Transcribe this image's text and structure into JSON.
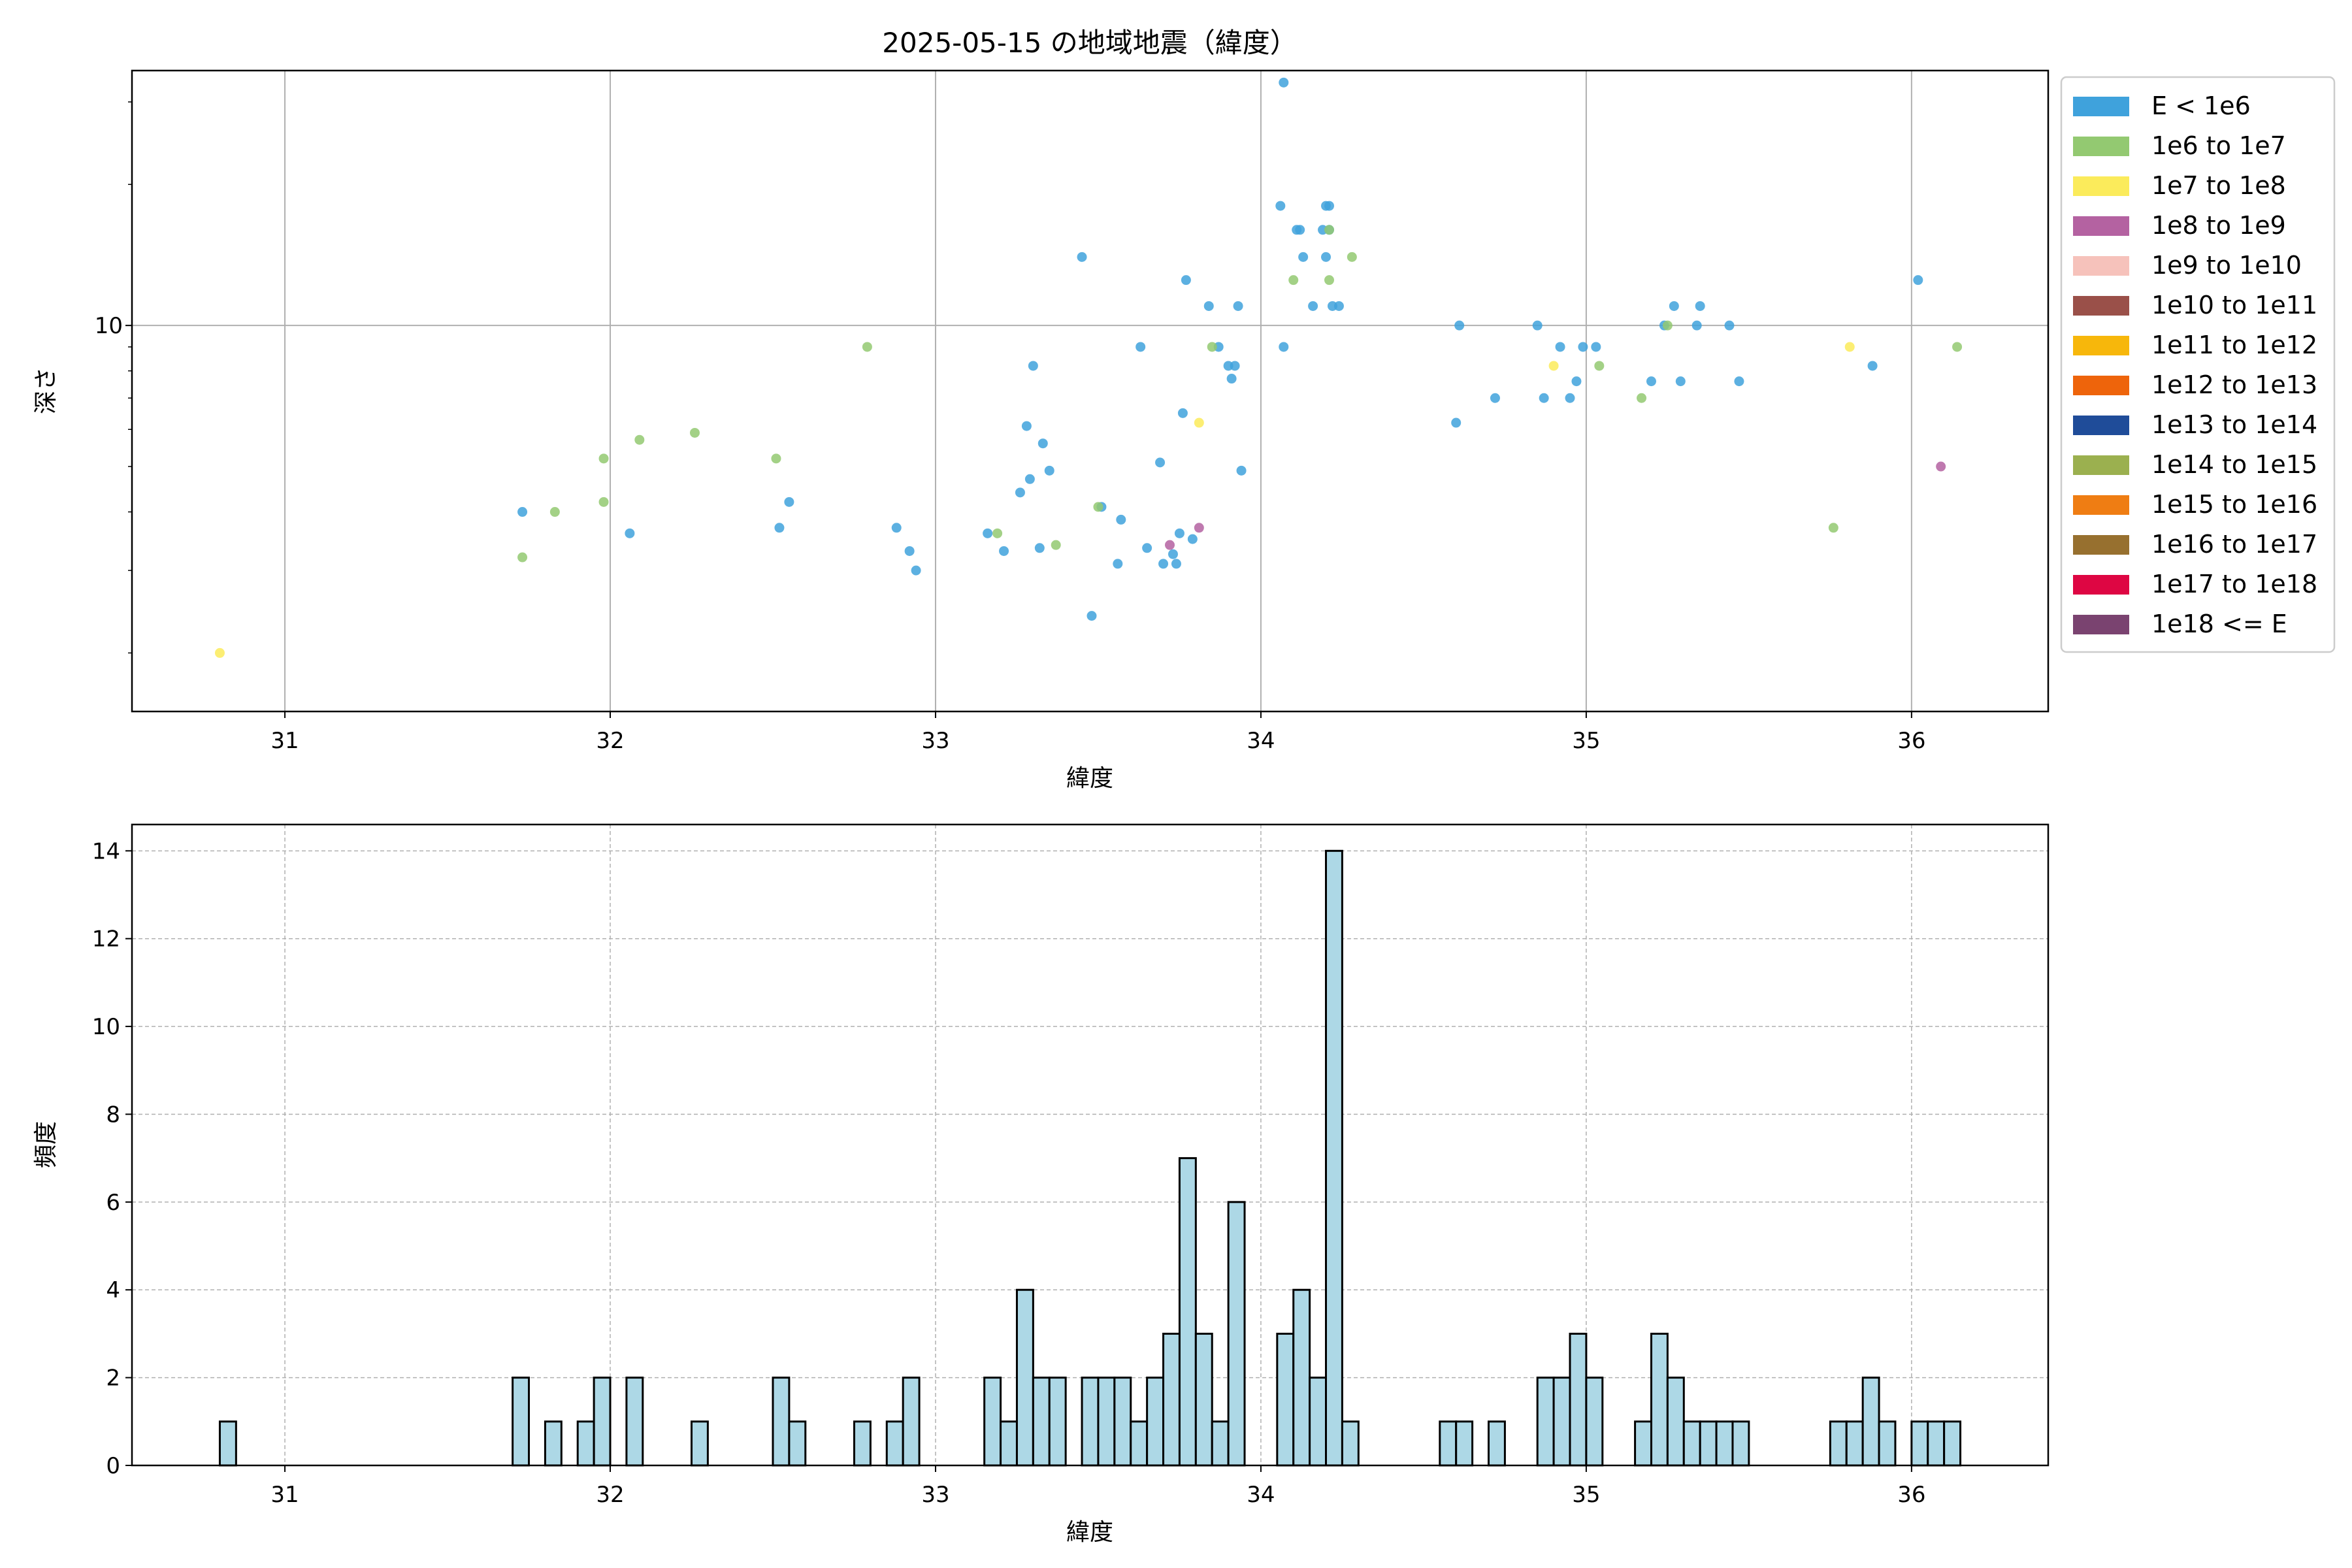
{
  "chart_data": [
    {
      "type": "scatter",
      "title": "2025-05-15 の地域地震（緯度）",
      "xlabel": "緯度",
      "ylabel": "深さ",
      "xlim": [
        30.53,
        36.42
      ],
      "ylim": [
        1.5,
        35
      ],
      "yscale": "log",
      "x_ticks": [
        "31",
        "32",
        "33",
        "34",
        "35",
        "36"
      ],
      "y_tick_label": "10",
      "grid": true,
      "legend_position": "outside-right",
      "legend": [
        {
          "label": "E < 1e6",
          "color": "#3fa2dc"
        },
        {
          "label": "1e6 to 1e7",
          "color": "#93c971"
        },
        {
          "label": "1e7 to 1e8",
          "color": "#fbeb5b"
        },
        {
          "label": "1e8 to 1e9",
          "color": "#b462a1"
        },
        {
          "label": "1e9 to 1e10",
          "color": "#f6c2bb"
        },
        {
          "label": "1e10 to 1e11",
          "color": "#9a5049"
        },
        {
          "label": "1e11 to 1e12",
          "color": "#f7b70b"
        },
        {
          "label": "1e12 to 1e13",
          "color": "#ee640b"
        },
        {
          "label": "1e13 to 1e14",
          "color": "#1f4c99"
        },
        {
          "label": "1e14 to 1e15",
          "color": "#9bb04f"
        },
        {
          "label": "1e15 to 1e16",
          "color": "#ef7d13"
        },
        {
          "label": "1e16 to 1e17",
          "color": "#97702f"
        },
        {
          "label": "1e17 to 1e18",
          "color": "#de0643"
        },
        {
          "label": "1e18 <= E",
          "color": "#7a4370"
        }
      ],
      "series": [
        {
          "name": "E < 1e6",
          "points": [
            [
              31.73,
              4.0
            ],
            [
              32.06,
              3.6
            ],
            [
              32.52,
              3.7
            ],
            [
              32.55,
              4.2
            ],
            [
              32.88,
              3.7
            ],
            [
              32.92,
              3.3
            ],
            [
              32.94,
              3.0
            ],
            [
              33.16,
              3.6
            ],
            [
              33.21,
              3.3
            ],
            [
              33.26,
              4.4
            ],
            [
              33.28,
              6.1
            ],
            [
              33.29,
              4.7
            ],
            [
              33.3,
              8.2
            ],
            [
              33.32,
              3.35
            ],
            [
              33.33,
              5.6
            ],
            [
              33.35,
              4.9
            ],
            [
              33.45,
              14.0
            ],
            [
              33.48,
              2.4
            ],
            [
              33.51,
              4.1
            ],
            [
              33.56,
              3.1
            ],
            [
              33.57,
              3.85
            ],
            [
              33.63,
              9.0
            ],
            [
              33.65,
              3.35
            ],
            [
              33.69,
              5.1
            ],
            [
              33.7,
              3.1
            ],
            [
              33.73,
              3.25
            ],
            [
              33.74,
              3.1
            ],
            [
              33.75,
              3.6
            ],
            [
              33.76,
              6.5
            ],
            [
              33.77,
              12.5
            ],
            [
              33.79,
              3.5
            ],
            [
              33.84,
              11.0
            ],
            [
              33.87,
              9.0
            ],
            [
              33.9,
              8.2
            ],
            [
              33.91,
              7.7
            ],
            [
              33.92,
              8.2
            ],
            [
              33.93,
              11.0
            ],
            [
              33.94,
              4.9
            ],
            [
              34.06,
              18.0
            ],
            [
              34.07,
              9.0
            ],
            [
              34.07,
              33.0
            ],
            [
              34.11,
              16.0
            ],
            [
              34.12,
              16.0
            ],
            [
              34.13,
              14.0
            ],
            [
              34.16,
              11.0
            ],
            [
              34.19,
              16.0
            ],
            [
              34.2,
              18.0
            ],
            [
              34.2,
              14.0
            ],
            [
              34.21,
              16.0
            ],
            [
              34.21,
              18.0
            ],
            [
              34.22,
              11.0
            ],
            [
              34.24,
              11.0
            ],
            [
              34.6,
              6.2
            ],
            [
              34.61,
              10.0
            ],
            [
              34.72,
              7.0
            ],
            [
              34.85,
              10.0
            ],
            [
              34.87,
              7.0
            ],
            [
              34.92,
              9.0
            ],
            [
              34.95,
              7.0
            ],
            [
              34.97,
              7.6
            ],
            [
              34.99,
              9.0
            ],
            [
              35.03,
              9.0
            ],
            [
              35.2,
              7.6
            ],
            [
              35.24,
              10.0
            ],
            [
              35.27,
              11.0
            ],
            [
              35.29,
              7.6
            ],
            [
              35.34,
              10.0
            ],
            [
              35.35,
              11.0
            ],
            [
              35.44,
              10.0
            ],
            [
              35.47,
              7.6
            ],
            [
              35.88,
              8.2
            ],
            [
              36.02,
              12.5
            ]
          ]
        },
        {
          "name": "1e6 to 1e7",
          "points": [
            [
              31.73,
              3.2
            ],
            [
              31.83,
              4.0
            ],
            [
              31.98,
              4.2
            ],
            [
              31.98,
              5.2
            ],
            [
              32.09,
              5.7
            ],
            [
              32.26,
              5.9
            ],
            [
              32.51,
              5.2
            ],
            [
              32.79,
              9.0
            ],
            [
              33.19,
              3.6
            ],
            [
              33.37,
              3.4
            ],
            [
              33.5,
              4.1
            ],
            [
              33.85,
              9.0
            ],
            [
              34.1,
              12.5
            ],
            [
              34.21,
              12.5
            ],
            [
              34.21,
              16.0
            ],
            [
              34.28,
              14.0
            ],
            [
              35.04,
              8.2
            ],
            [
              35.17,
              7.0
            ],
            [
              35.25,
              10.0
            ],
            [
              35.76,
              3.7
            ],
            [
              36.14,
              9.0
            ]
          ]
        },
        {
          "name": "1e7 to 1e8",
          "points": [
            [
              30.8,
              2.0
            ],
            [
              33.81,
              6.2
            ],
            [
              34.9,
              8.2
            ],
            [
              35.81,
              9.0
            ]
          ]
        },
        {
          "name": "1e8 to 1e9",
          "points": [
            [
              33.72,
              3.4
            ],
            [
              33.81,
              3.7
            ],
            [
              36.09,
              5.0
            ]
          ]
        }
      ]
    },
    {
      "type": "bar",
      "title": "",
      "xlabel": "緯度",
      "ylabel": "頻度",
      "xlim": [
        30.53,
        36.42
      ],
      "ylim": [
        0,
        14.6
      ],
      "x_ticks": [
        "31",
        "32",
        "33",
        "34",
        "35",
        "36"
      ],
      "y_ticks": [
        "0",
        "2",
        "4",
        "6",
        "8",
        "10",
        "12",
        "14"
      ],
      "grid": true,
      "bar_color": "#add8e6",
      "bin_width": 0.05,
      "bins": [
        [
          30.8,
          1
        ],
        [
          31.7,
          2
        ],
        [
          31.8,
          1
        ],
        [
          31.9,
          1
        ],
        [
          31.95,
          2
        ],
        [
          32.05,
          2
        ],
        [
          32.25,
          1
        ],
        [
          32.5,
          2
        ],
        [
          32.55,
          1
        ],
        [
          32.75,
          1
        ],
        [
          32.85,
          1
        ],
        [
          32.9,
          2
        ],
        [
          33.15,
          2
        ],
        [
          33.2,
          1
        ],
        [
          33.25,
          4
        ],
        [
          33.3,
          2
        ],
        [
          33.35,
          2
        ],
        [
          33.45,
          2
        ],
        [
          33.5,
          2
        ],
        [
          33.55,
          2
        ],
        [
          33.6,
          1
        ],
        [
          33.65,
          2
        ],
        [
          33.7,
          3
        ],
        [
          33.75,
          7
        ],
        [
          33.8,
          3
        ],
        [
          33.85,
          1
        ],
        [
          33.9,
          6
        ],
        [
          34.05,
          3
        ],
        [
          34.1,
          4
        ],
        [
          34.15,
          2
        ],
        [
          34.2,
          14
        ],
        [
          34.25,
          1
        ],
        [
          34.55,
          1
        ],
        [
          34.6,
          1
        ],
        [
          34.7,
          1
        ],
        [
          34.85,
          2
        ],
        [
          34.9,
          2
        ],
        [
          34.95,
          3
        ],
        [
          35.0,
          2
        ],
        [
          35.15,
          1
        ],
        [
          35.2,
          3
        ],
        [
          35.25,
          2
        ],
        [
          35.3,
          1
        ],
        [
          35.35,
          1
        ],
        [
          35.4,
          1
        ],
        [
          35.45,
          1
        ],
        [
          35.75,
          1
        ],
        [
          35.8,
          1
        ],
        [
          35.85,
          2
        ],
        [
          35.9,
          1
        ],
        [
          36.0,
          1
        ],
        [
          36.05,
          1
        ],
        [
          36.1,
          1
        ]
      ]
    }
  ]
}
